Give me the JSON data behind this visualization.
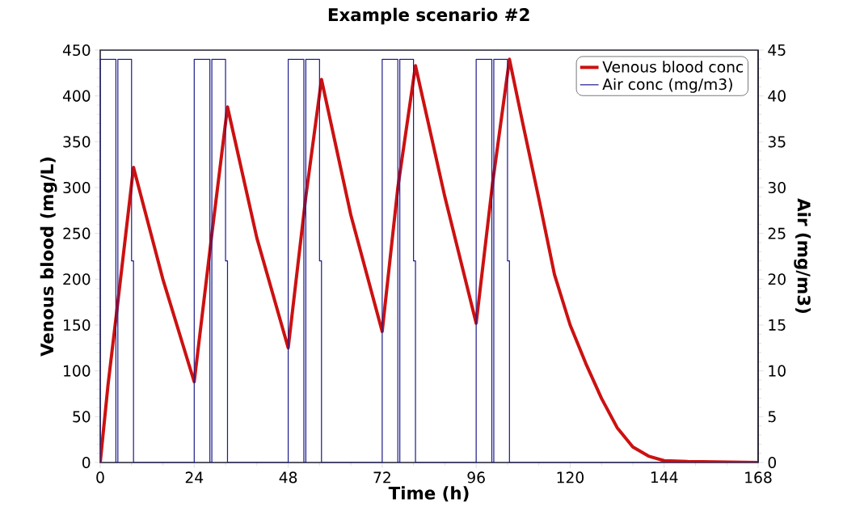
{
  "chart_data": {
    "type": "line",
    "title": "Example scenario #2",
    "xlabel": "Time (h)",
    "ylabel": "Venous blood (mg/L)",
    "y2label": "Air (mg/m3)",
    "xlim": [
      0,
      168
    ],
    "xticks": [
      0,
      24,
      48,
      72,
      96,
      120,
      144,
      168
    ],
    "ylim": [
      0,
      450
    ],
    "yticks": [
      0,
      50,
      100,
      150,
      200,
      250,
      300,
      350,
      400,
      450
    ],
    "y2lim": [
      0,
      45
    ],
    "y2ticks": [
      0,
      5,
      10,
      15,
      20,
      25,
      30,
      35,
      40,
      45
    ],
    "legend": "top right",
    "series": [
      {
        "name": "Venous blood conc",
        "color": "#cc1111",
        "x": [
          0,
          2,
          4.5,
          8.5,
          16,
          24,
          28.5,
          32.5,
          40,
          48,
          52.5,
          56.5,
          64,
          72,
          76,
          80.5,
          88,
          96,
          100.2,
          104.5,
          108,
          112,
          116,
          120,
          124,
          128,
          132,
          136,
          140,
          144,
          150,
          168
        ],
        "values": [
          0,
          85,
          175,
          322,
          200,
          88,
          249,
          388,
          245,
          125,
          290,
          418,
          270,
          143,
          300,
          433,
          290,
          152,
          305,
          440,
          368,
          288,
          205,
          150,
          108,
          70,
          38,
          17,
          7,
          2,
          1,
          0
        ]
      },
      {
        "name": "Air conc (mg/m3)",
        "color": "#1a1a8c",
        "type": "step",
        "axis": "y2",
        "x": [
          0,
          0,
          4,
          4.5,
          8,
          8.5,
          24,
          28,
          28.5,
          32,
          32.5,
          48,
          52,
          52.5,
          56,
          56.5,
          72,
          76,
          76.5,
          80,
          80.5,
          96,
          100,
          100.5,
          104,
          104.5,
          168
        ],
        "values": [
          0,
          44,
          0,
          44,
          22,
          0,
          44,
          0,
          44,
          22,
          0,
          44,
          0,
          44,
          22,
          0,
          44,
          0,
          44,
          22,
          0,
          44,
          0,
          44,
          22,
          0,
          0
        ]
      }
    ]
  }
}
